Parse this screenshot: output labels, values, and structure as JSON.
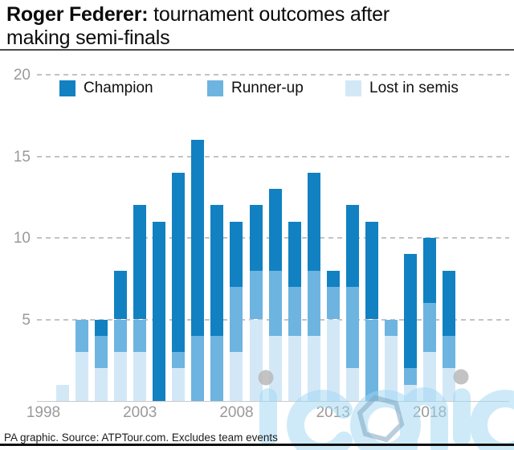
{
  "title": {
    "bold": "Roger Federer:",
    "rest": " tournament outcomes after",
    "line2": "making semi-finals"
  },
  "legend": [
    {
      "label": "Champion",
      "color": "#1181c2"
    },
    {
      "label": "Runner-up",
      "color": "#6db4e0"
    },
    {
      "label": "Lost in semis",
      "color": "#d3e8f7"
    }
  ],
  "source": "PA graphic. Source: ATPTour.com. Excludes team events",
  "watermark_text": "iconic",
  "colors": {
    "champion": "#1181c2",
    "runner_up": "#6db4e0",
    "lost_semis": "#d3e8f7",
    "grid": "#c3c3c3",
    "axis_text": "#9a9a9a",
    "watermark_blue": "#9ed7f5",
    "watermark_gray_dot": "#b8b8b8"
  },
  "chart_data": {
    "type": "bar",
    "stacked": true,
    "title": "Roger Federer: tournament outcomes after making semi-finals",
    "x": [
      1999,
      2000,
      2001,
      2002,
      2003,
      2004,
      2005,
      2006,
      2007,
      2008,
      2009,
      2010,
      2011,
      2012,
      2013,
      2014,
      2015,
      2016,
      2017,
      2018,
      2019
    ],
    "series": [
      {
        "name": "Champion",
        "color": "#1181c2",
        "values": [
          0,
          0,
          1,
          3,
          7,
          11,
          11,
          12,
          8,
          4,
          4,
          5,
          4,
          6,
          1,
          5,
          6,
          0,
          7,
          4,
          4
        ]
      },
      {
        "name": "Runner-up",
        "color": "#6db4e0",
        "values": [
          0,
          2,
          2,
          2,
          2,
          0,
          1,
          4,
          4,
          4,
          3,
          4,
          3,
          4,
          2,
          5,
          5,
          1,
          1,
          3,
          2
        ]
      },
      {
        "name": "Lost in semis",
        "color": "#d3e8f7",
        "values": [
          1,
          3,
          2,
          3,
          3,
          0,
          2,
          0,
          0,
          3,
          5,
          4,
          4,
          4,
          5,
          2,
          0,
          4,
          1,
          3,
          2
        ]
      }
    ],
    "totals": [
      1,
      5,
      5,
      8,
      12,
      11,
      14,
      16,
      12,
      11,
      12,
      13,
      11,
      14,
      8,
      12,
      11,
      5,
      9,
      10,
      8
    ],
    "ylim": [
      0,
      20
    ],
    "yticks": [
      5,
      10,
      15,
      20
    ],
    "xticks": [
      1998,
      2003,
      2008,
      2013,
      2018
    ],
    "grid": "horizontal-dashed",
    "legend_position": "top",
    "xlabel": "",
    "ylabel": ""
  }
}
